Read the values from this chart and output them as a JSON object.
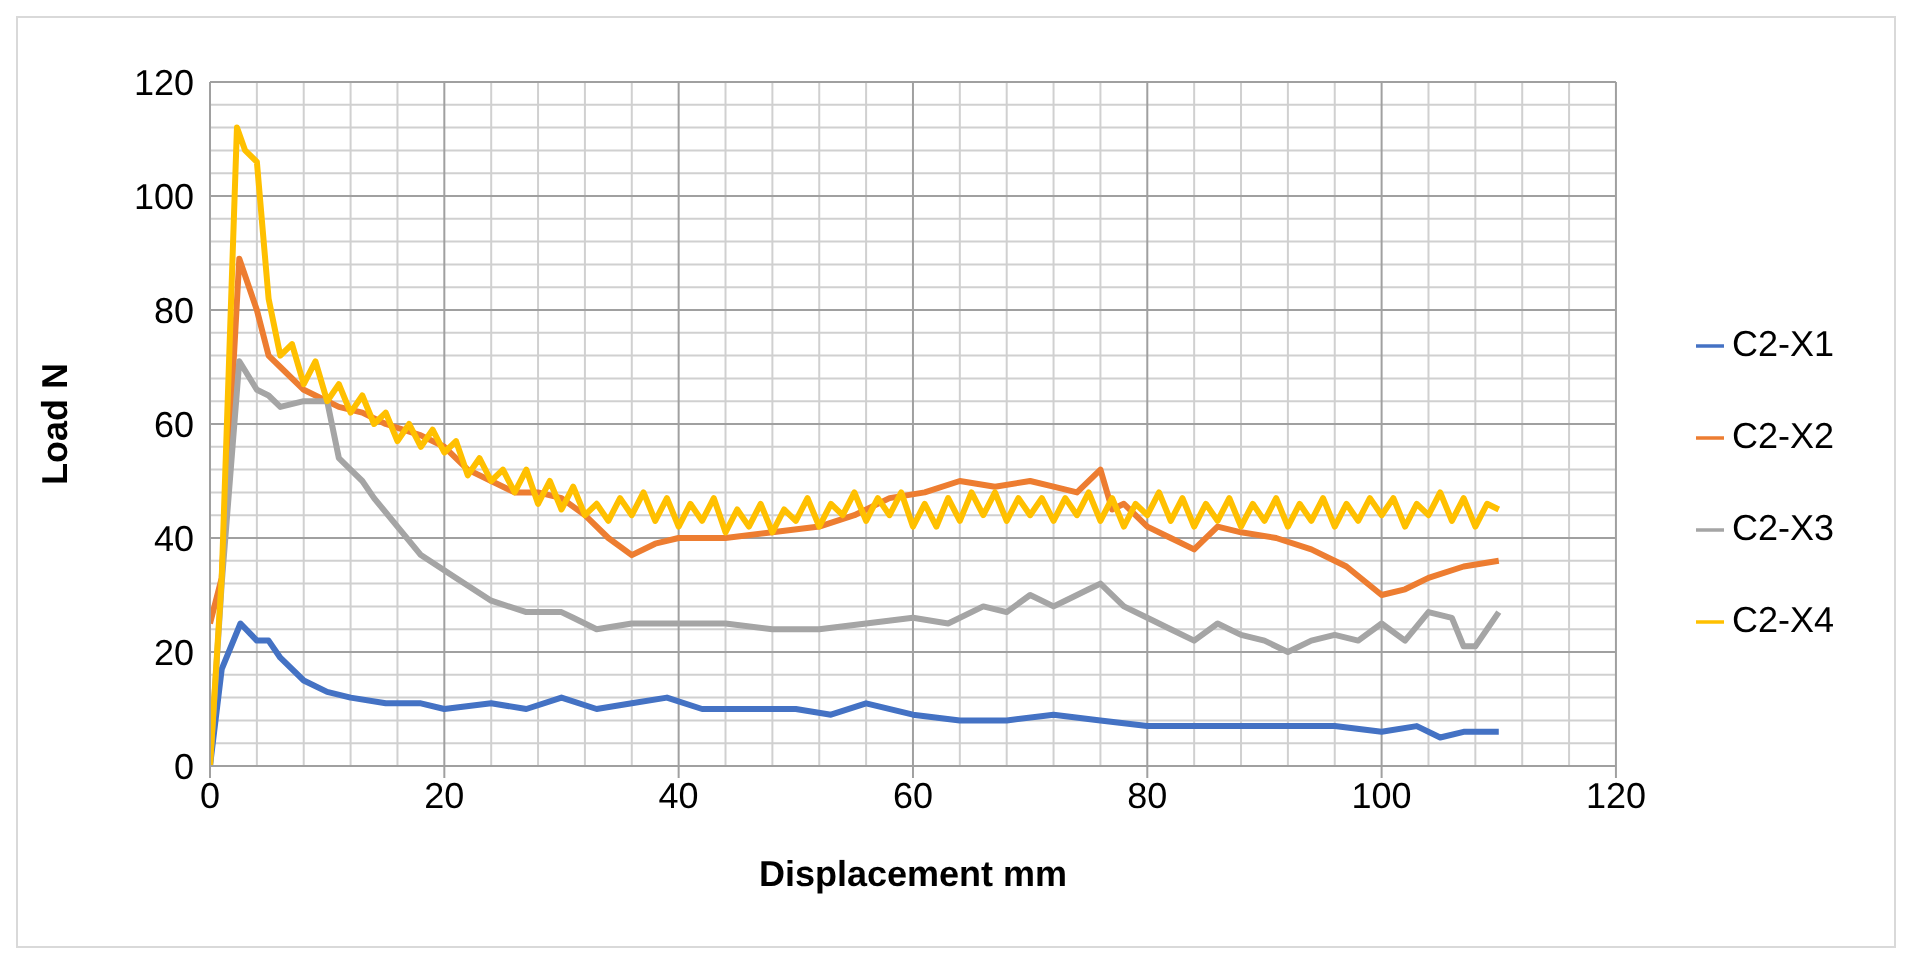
{
  "chart_data": {
    "type": "line",
    "xlabel": "Displacement mm",
    "ylabel": "Load N",
    "xlim": [
      0,
      120
    ],
    "xticks": [
      0,
      20,
      40,
      60,
      80,
      100,
      120
    ],
    "ylim": [
      0,
      120
    ],
    "yticks": [
      0,
      20,
      40,
      60,
      80,
      100,
      120
    ],
    "grid": true,
    "legend": "right",
    "marker": "none",
    "line_style": "solid",
    "series": [
      {
        "name": "C2-X1",
        "color": "#4472c4",
        "x": [
          0,
          1,
          2.6,
          4,
          5,
          6,
          8,
          10,
          12,
          15,
          18,
          20,
          24,
          27,
          30,
          33,
          36,
          39,
          42,
          45,
          50,
          53,
          56,
          60,
          64,
          68,
          72,
          76,
          80,
          84,
          88,
          92,
          96,
          100,
          103,
          105,
          107,
          110
        ],
        "values": [
          0,
          17,
          25,
          22,
          22,
          19,
          15,
          13,
          12,
          11,
          11,
          10,
          11,
          10,
          12,
          10,
          11,
          12,
          10,
          10,
          10,
          9,
          11,
          9,
          8,
          8,
          9,
          8,
          7,
          7,
          7,
          7,
          7,
          6,
          7,
          5,
          6,
          6
        ]
      },
      {
        "name": "C2-X2",
        "color": "#ed7d31",
        "x": [
          0,
          1,
          2.5,
          4,
          5,
          6,
          8,
          9,
          11,
          13,
          15,
          18,
          20,
          22,
          24,
          26,
          28,
          30,
          32,
          34,
          36,
          38,
          40,
          44,
          48,
          52,
          55,
          58,
          61,
          64,
          67,
          70,
          72,
          74,
          76,
          77,
          78,
          80,
          82,
          84,
          86,
          88,
          91,
          94,
          97,
          100,
          102,
          104,
          107,
          110
        ],
        "values": [
          25,
          33,
          89,
          80,
          72,
          70,
          66,
          65,
          63,
          62,
          60,
          58,
          56,
          52,
          50,
          48,
          48,
          47,
          44,
          40,
          37,
          39,
          40,
          40,
          41,
          42,
          44,
          47,
          48,
          50,
          49,
          50,
          49,
          48,
          52,
          45,
          46,
          42,
          40,
          38,
          42,
          41,
          40,
          38,
          35,
          30,
          31,
          33,
          35,
          36
        ]
      },
      {
        "name": "C2-X3",
        "color": "#a5a5a5",
        "x": [
          0,
          1,
          2.5,
          4,
          5,
          6,
          8,
          10,
          11,
          12,
          13,
          14,
          16,
          18,
          21,
          24,
          27,
          30,
          31,
          33,
          36,
          40,
          44,
          48,
          52,
          56,
          60,
          63,
          66,
          68,
          70,
          72,
          73,
          75,
          76,
          78,
          80,
          82,
          84,
          86,
          88,
          90,
          92,
          94,
          96,
          98,
          100,
          102,
          104,
          106,
          107,
          108,
          110
        ],
        "values": [
          0,
          32,
          71,
          66,
          65,
          63,
          64,
          64,
          54,
          52,
          50,
          47,
          42,
          37,
          33,
          29,
          27,
          27,
          26,
          24,
          25,
          25,
          25,
          24,
          24,
          25,
          26,
          25,
          28,
          27,
          30,
          28,
          29,
          31,
          32,
          28,
          26,
          24,
          22,
          25,
          23,
          22,
          20,
          22,
          23,
          22,
          25,
          22,
          27,
          26,
          21,
          21,
          27
        ]
      },
      {
        "name": "C2-X4",
        "color": "#ffc000",
        "x": [
          0,
          1,
          2.3,
          3,
          4,
          5,
          6,
          7,
          8,
          9,
          10,
          11,
          12,
          13,
          14,
          15,
          16,
          17,
          18,
          19,
          20,
          21,
          22,
          23,
          24,
          25,
          26,
          27,
          28,
          29,
          30,
          31,
          32,
          33,
          34,
          35,
          36,
          37,
          38,
          39,
          40,
          41,
          42,
          43,
          44,
          45,
          46,
          47,
          48,
          49,
          50,
          51,
          52,
          53,
          54,
          55,
          56,
          57,
          58,
          59,
          60,
          61,
          62,
          63,
          64,
          65,
          66,
          67,
          68,
          69,
          70,
          71,
          72,
          73,
          74,
          75,
          76,
          77,
          78,
          79,
          80,
          81,
          82,
          83,
          84,
          85,
          86,
          87,
          88,
          89,
          90,
          91,
          92,
          93,
          94,
          95,
          96,
          97,
          98,
          99,
          100,
          101,
          102,
          103,
          104,
          105,
          106,
          107,
          108,
          109,
          110
        ],
        "values": [
          0,
          33,
          112,
          108,
          106,
          82,
          72,
          74,
          67,
          71,
          64,
          67,
          62,
          65,
          60,
          62,
          57,
          60,
          56,
          59,
          55,
          57,
          51,
          54,
          50,
          52,
          48,
          52,
          46,
          50,
          45,
          49,
          44,
          46,
          43,
          47,
          44,
          48,
          43,
          47,
          42,
          46,
          43,
          47,
          41,
          45,
          42,
          46,
          41,
          45,
          43,
          47,
          42,
          46,
          44,
          48,
          43,
          47,
          44,
          48,
          42,
          46,
          42,
          47,
          43,
          48,
          44,
          48,
          43,
          47,
          44,
          47,
          43,
          47,
          44,
          48,
          43,
          47,
          42,
          46,
          44,
          48,
          43,
          47,
          42,
          46,
          43,
          47,
          42,
          46,
          43,
          47,
          42,
          46,
          43,
          47,
          42,
          46,
          43,
          47,
          44,
          47,
          42,
          46,
          44,
          48,
          43,
          47,
          42,
          46,
          45
        ]
      }
    ]
  }
}
